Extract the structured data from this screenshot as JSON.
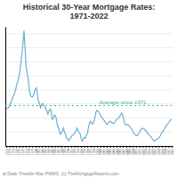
{
  "chart_data": {
    "type": "line",
    "title": "Historical 30-Year Mortgage Rates:\n1971-2022",
    "color": "#6ab0d4",
    "x": [
      1971,
      1971.3208,
      1971.6415,
      1971.9623,
      1972.283,
      1972.6038,
      1972.9245,
      1973.2453,
      1973.566,
      1973.8868,
      1974.2075,
      1974.5283,
      1974.8491,
      1975.1698,
      1975.4906,
      1975.8113,
      1976.1321,
      1976.4528,
      1976.7736,
      1977.0943,
      1977.4151,
      1977.7358,
      1978.0566,
      1978.3774,
      1978.6981,
      1979.0189,
      1979.3396,
      1979.6604,
      1979.9811,
      1980.3019,
      1980.6226,
      1980.9434,
      1981.2642,
      1981.5849,
      1981.9057,
      1982.2264,
      1982.5472,
      1982.8679,
      1983.1887,
      1983.5094,
      1983.8302,
      1984.1509,
      1984.4717,
      1984.7925,
      1985.1132,
      1985.434,
      1985.7547,
      1986.0755,
      1986.3962,
      1986.717,
      1987.0377,
      1987.3585,
      1987.6792,
      1988,
      1988.3208,
      1988.6415,
      1988.9623,
      1989.283,
      1989.6038,
      1989.9245,
      1990.2453,
      1990.566,
      1990.8868,
      1991.2075,
      1991.5283,
      1991.8491,
      1992.1698,
      1992.4906,
      1992.8113,
      1993.1321,
      1993.4528,
      1993.7736,
      1994.0943,
      1994.4151,
      1994.7358,
      1995.0566,
      1995.3774,
      1995.6981,
      1996.0189,
      1996.3396,
      1996.6604,
      1996.9811,
      1997.3019,
      1997.6226,
      1997.9434,
      1998.2642,
      1998.5849,
      1998.9057,
      1999.2264,
      1999.5472,
      1999.8679,
      2000.1887,
      2000.5094,
      2000.8302,
      2001.1509,
      2001.4717,
      2001.7925,
      2002.1132,
      2002.434,
      2002.7547,
      2003.0755,
      2003.3962,
      2003.717,
      2004.0377,
      2004.3585,
      2004.6792,
      2005,
      2005.3208,
      2005.6415,
      2005.9623,
      2006.283,
      2006.6038,
      2006.9245,
      2007.2453,
      2007.566,
      2007.8868,
      2008.2075,
      2008.5283,
      2008.8491,
      2009.1698,
      2009.4906,
      2009.8113,
      2010.1321,
      2010.4528,
      2010.7736,
      2011.0943,
      2011.4151,
      2011.7358,
      2012.0566,
      2012.3774,
      2012.6981,
      2013.0189,
      2013.3396,
      2013.6604,
      2013.9811,
      2014.3019,
      2014.6226,
      2014.9434,
      2015.2642,
      2015.5849,
      2015.9057,
      2016.2264,
      2016.5472,
      2016.8679,
      2017.1887,
      2017.5094,
      2017.8302,
      2018.1509,
      2018.4717,
      2018.7925,
      2019.1132,
      2019.434,
      2019.7547,
      2020.0755,
      2020.3962,
      2020.717,
      2021.0377,
      2021.3585,
      2021.6792,
      2022
    ],
    "values": [
      7.33,
      7.38,
      7.46,
      7.73,
      8.0,
      8.45,
      8.89,
      9.19,
      9.57,
      10.03,
      10.78,
      11.2,
      11.74,
      12.66,
      13.74,
      15.12,
      16.63,
      18.45,
      16.04,
      13.24,
      12.43,
      11.55,
      10.19,
      9.31,
      9.03,
      8.96,
      9.19,
      9.64,
      10.13,
      10.32,
      9.25,
      8.39,
      7.93,
      7.44,
      7.96,
      8.05,
      7.81,
      7.52,
      7.34,
      6.94,
      6.54,
      6.97,
      7.24,
      7.04,
      5.83,
      5.84,
      6.41,
      6.34,
      5.87,
      5.04,
      4.69,
      3.98,
      3.65,
      3.92,
      4.17,
      4.54,
      3.99,
      3.65,
      3.11,
      2.96,
      2.77,
      3.0,
      3.22,
      3.45,
      3.55,
      3.72,
      3.85,
      4.2,
      4.54,
      4.17,
      3.94,
      3.72,
      3.11,
      2.67,
      2.96,
      3.22,
      3.11,
      3.56,
      3.78,
      4.67,
      5.3,
      5.52,
      5.23,
      5.1,
      5.34,
      5.89,
      6.7,
      7.08,
      6.96,
      6.83,
      6.5,
      6.27,
      6.03,
      5.87,
      5.65,
      5.48,
      5.21,
      5.09,
      5.25,
      5.47,
      5.53,
      5.34,
      5.28,
      5.19,
      5.32,
      5.55,
      5.8,
      5.87,
      6.0,
      6.23,
      6.47,
      6.72,
      6.32,
      5.62,
      5.15,
      4.97,
      5.06,
      5.04,
      4.86,
      4.71,
      4.54,
      4.27,
      3.97,
      3.73,
      3.62,
      3.51,
      3.45,
      3.66,
      3.98,
      4.17,
      4.46,
      4.54,
      4.45,
      4.37,
      4.2,
      3.99,
      3.73,
      3.65,
      3.45,
      3.31,
      3.11,
      2.87,
      2.72,
      2.77,
      2.88,
      3.01,
      3.12,
      3.22,
      3.45,
      3.78,
      3.98,
      4.16,
      4.42,
      4.72,
      4.94,
      5.1,
      5.3,
      5.55,
      5.74,
      5.81
    ],
    "xlim": [
      1970.7,
      2022.3
    ],
    "xticks": [
      1971,
      1972,
      1973,
      1974,
      1975,
      1976,
      1977,
      1978,
      1979,
      1980,
      1981,
      1982,
      1983,
      1984,
      1985,
      1986,
      1987,
      1988,
      1989,
      1990,
      1991,
      1992,
      1993,
      1994,
      1995,
      1996,
      1997,
      1998,
      1999,
      2000,
      2001,
      2002,
      2003,
      2004,
      2005,
      2006,
      2007,
      2008,
      2009,
      2010,
      2011,
      2012,
      2013,
      2014,
      2015,
      2016,
      2017,
      2018,
      2019,
      2020,
      2021,
      2022
    ],
    "ylim": [
      2,
      19
    ],
    "yticks": [
      4,
      6,
      8,
      10,
      12,
      14,
      16,
      18
    ],
    "grid": true,
    "tick_labels": "x",
    "reference_line": {
      "value": 7.76,
      "label": "Average since 1971:",
      "color": "#3ab5a5"
    },
    "footnote": "al Data: Freddie Mac PMMS. (c) TheMortgageReports.com"
  }
}
